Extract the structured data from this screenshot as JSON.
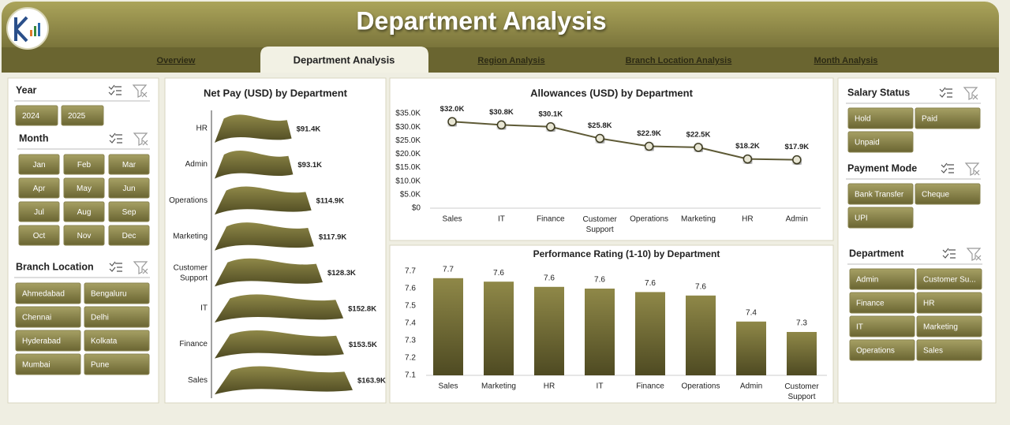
{
  "header": {
    "title": "Department Analysis",
    "tabs": [
      "Overview",
      "Department Analysis",
      "Region Analysis",
      "Branch Location Analysis",
      "Month Analysis"
    ],
    "active_tab": 1
  },
  "slicers": [
    {
      "title": "Year",
      "items": [
        "2024",
        "2025"
      ]
    },
    {
      "title": "Month",
      "items": [
        "Jan",
        "Feb",
        "Mar",
        "Apr",
        "May",
        "Jun",
        "Jul",
        "Aug",
        "Sep",
        "Oct",
        "Nov",
        "Dec"
      ]
    },
    {
      "title": "Branch Location",
      "items": [
        "Ahmedabad",
        "Bengaluru",
        "Chennai",
        "Delhi",
        "Hyderabad",
        "Kolkata",
        "Mumbai",
        "Pune"
      ]
    },
    {
      "title": "Salary Status",
      "items": [
        "Hold",
        "Paid",
        "Unpaid"
      ]
    },
    {
      "title": "Payment Mode",
      "items": [
        "Bank Transfer",
        "Cheque",
        "UPI"
      ]
    },
    {
      "title": "Department",
      "items": [
        "Admin",
        "Customer Support",
        "Finance",
        "HR",
        "IT",
        "Marketing",
        "Operations",
        "Sales"
      ]
    }
  ],
  "chart_data": [
    {
      "type": "hbar",
      "title": "Net Pay (USD) by Department",
      "categories": [
        "HR",
        "Admin",
        "Operations",
        "Marketing",
        "Customer Support",
        "IT",
        "Finance",
        "Sales"
      ],
      "values": [
        91400,
        93100,
        114900,
        117900,
        128300,
        152800,
        153500,
        163900
      ],
      "value_labels": [
        "$91.4K",
        "$93.1K",
        "$114.9K",
        "$117.9K",
        "$128.3K",
        "$152.8K",
        "$153.5K",
        "$163.9K"
      ],
      "color": "#7a7438"
    },
    {
      "type": "line",
      "title": "Allowances (USD) by Department",
      "categories": [
        "Sales",
        "IT",
        "Finance",
        "Customer Support",
        "Operations",
        "Marketing",
        "HR",
        "Admin"
      ],
      "values": [
        32000,
        30800,
        30100,
        25800,
        22900,
        22500,
        18200,
        17900
      ],
      "value_labels": [
        "$32.0K",
        "$30.8K",
        "$30.1K",
        "$25.8K",
        "$22.9K",
        "$22.5K",
        "$18.2K",
        "$17.9K"
      ],
      "ylim": [
        0,
        35000
      ],
      "yticks": [
        {
          "value": 0,
          "label": "$0"
        },
        {
          "value": 5000,
          "label": "$5.0K"
        },
        {
          "value": 10000,
          "label": "$10.0K"
        },
        {
          "value": 15000,
          "label": "$15.0K"
        },
        {
          "value": 20000,
          "label": "$20.0K"
        },
        {
          "value": 25000,
          "label": "$25.0K"
        },
        {
          "value": 30000,
          "label": "$30.0K"
        },
        {
          "value": 35000,
          "label": "$35.0K"
        }
      ],
      "color": "#5e5a36",
      "grid": false
    },
    {
      "type": "bar",
      "title": "Performance Rating (1-10) by Department",
      "categories": [
        "Sales",
        "Marketing",
        "HR",
        "IT",
        "Finance",
        "Operations",
        "Admin",
        "Customer Support"
      ],
      "values": [
        7.66,
        7.64,
        7.61,
        7.6,
        7.58,
        7.56,
        7.41,
        7.35
      ],
      "value_labels": [
        "7.7",
        "7.6",
        "7.6",
        "7.6",
        "7.6",
        "7.6",
        "7.4",
        "7.3"
      ],
      "ylim": [
        7.1,
        7.7
      ],
      "yticks": [
        7.1,
        7.2,
        7.3,
        7.4,
        7.5,
        7.6,
        7.7
      ],
      "color": "#7a7438",
      "grid": false
    }
  ]
}
